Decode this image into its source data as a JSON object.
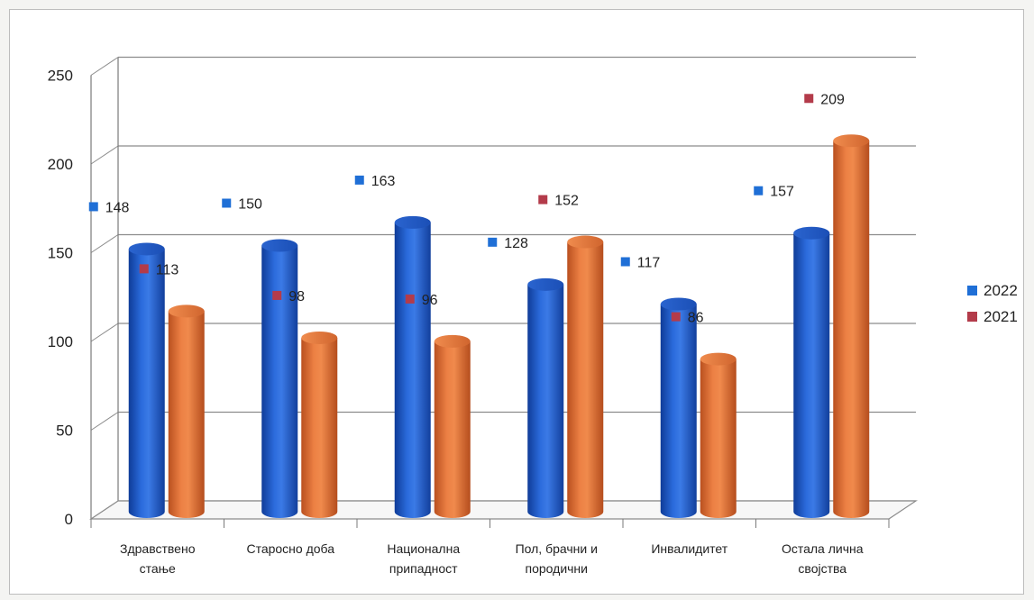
{
  "chart_data": {
    "type": "bar",
    "categories": [
      [
        "Здравствено",
        "стање"
      ],
      [
        "Старосно доба"
      ],
      [
        "Национална",
        "припадност"
      ],
      [
        "Пол, брачни и",
        "породични"
      ],
      [
        "Инвалидитет"
      ],
      [
        "Остала лична",
        "својства"
      ]
    ],
    "series": [
      {
        "name": "2022",
        "values": [
          148,
          150,
          163,
          128,
          117,
          157
        ],
        "color": "#1f57c3",
        "marker_color": "#1f6fd6"
      },
      {
        "name": "2021",
        "values": [
          113,
          98,
          96,
          152,
          86,
          209
        ],
        "color": "#e2743a",
        "marker_color": "#b33b4a"
      }
    ],
    "y_ticks": [
      "0",
      "50",
      "100",
      "150",
      "200",
      "250"
    ],
    "ylim": [
      0,
      250
    ],
    "grid": true,
    "legend": "right",
    "style": "3d-cylinder"
  }
}
